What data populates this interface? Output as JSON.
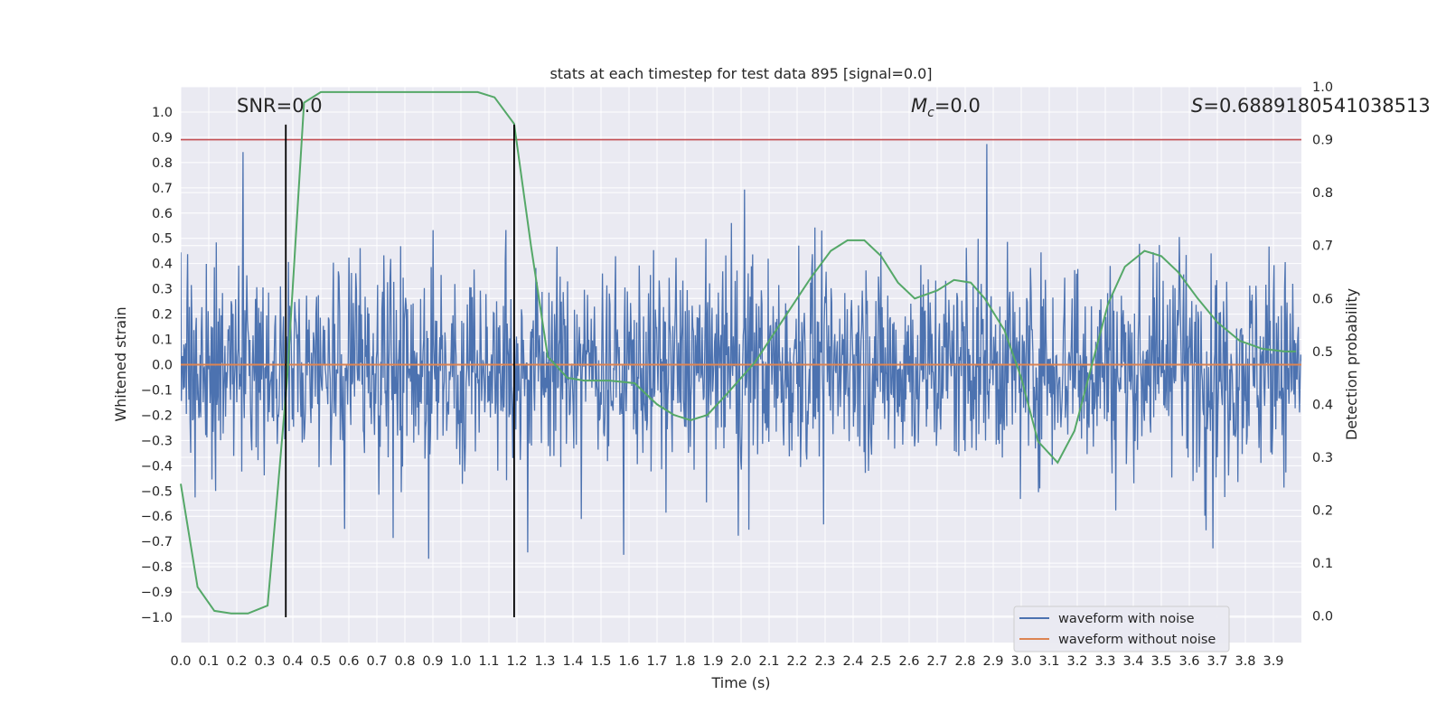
{
  "chart_data": {
    "type": "line",
    "title": "stats at each timestep for test data 895 [signal=0.0]",
    "xlabel": "Time (s)",
    "ylabel": "Whitened strain",
    "y2label": "Detection probability",
    "xlim": [
      0.0,
      4.0
    ],
    "ylim": [
      -1.1,
      1.1
    ],
    "y2lim": [
      -0.05,
      1.0
    ],
    "xticks": [
      "0.0",
      "0.1",
      "0.2",
      "0.3",
      "0.4",
      "0.5",
      "0.6",
      "0.7",
      "0.8",
      "0.9",
      "1.0",
      "1.1",
      "1.2",
      "1.3",
      "1.4",
      "1.5",
      "1.6",
      "1.7",
      "1.8",
      "1.9",
      "2.0",
      "2.1",
      "2.2",
      "2.3",
      "2.4",
      "2.5",
      "2.6",
      "2.7",
      "2.8",
      "2.9",
      "3.0",
      "3.1",
      "3.2",
      "3.3",
      "3.4",
      "3.5",
      "3.6",
      "3.7",
      "3.8",
      "3.9"
    ],
    "yticks": [
      "−1.0",
      "−0.9",
      "−0.8",
      "−0.7",
      "−0.6",
      "−0.5",
      "−0.4",
      "−0.3",
      "−0.2",
      "−0.1",
      "0.0",
      "0.1",
      "0.2",
      "0.3",
      "0.4",
      "0.5",
      "0.6",
      "0.7",
      "0.8",
      "0.9",
      "1.0"
    ],
    "y2ticks": [
      "0.0",
      "0.1",
      "0.2",
      "0.3",
      "0.4",
      "0.5",
      "0.6",
      "0.7",
      "0.8",
      "0.9",
      "1.0"
    ],
    "annotations": {
      "snr": "SNR=0.0",
      "mc_symbol": "M",
      "mc_sub": "c",
      "mc_value": "=0.0",
      "s_symbol": "S",
      "s_value": "=0.6889180541038513"
    },
    "vlines_x": [
      0.375,
      1.19
    ],
    "hline_threshold_y2": 0.9,
    "series": [
      {
        "name": "waveform with noise",
        "color": "#4c72b0",
        "style": "dense noise, amplitude roughly within [-1.0, 0.95]"
      },
      {
        "name": "waveform without noise",
        "color": "#dd8452",
        "values_constant": 0.0
      },
      {
        "name": "Detection probability",
        "color": "#55a868",
        "axis": "right",
        "x": [
          0.0,
          0.06,
          0.12,
          0.18,
          0.24,
          0.31,
          0.34,
          0.38,
          0.44,
          0.5,
          0.6,
          0.75,
          0.9,
          1.0,
          1.06,
          1.12,
          1.19,
          1.25,
          1.31,
          1.38,
          1.44,
          1.53,
          1.62,
          1.7,
          1.76,
          1.82,
          1.88,
          1.95,
          2.05,
          2.15,
          2.25,
          2.32,
          2.38,
          2.44,
          2.5,
          2.56,
          2.62,
          2.7,
          2.76,
          2.82,
          2.87,
          2.94,
          3.0,
          3.06,
          3.13,
          3.19,
          3.25,
          3.31,
          3.37,
          3.44,
          3.5,
          3.56,
          3.63,
          3.7,
          3.78,
          3.86,
          3.94,
          3.98
        ],
        "values": [
          0.25,
          0.055,
          0.01,
          0.005,
          0.005,
          0.02,
          0.2,
          0.45,
          0.97,
          0.99,
          0.99,
          0.99,
          0.99,
          0.99,
          0.99,
          0.98,
          0.93,
          0.7,
          0.49,
          0.45,
          0.445,
          0.445,
          0.44,
          0.4,
          0.38,
          0.37,
          0.38,
          0.42,
          0.48,
          0.56,
          0.64,
          0.69,
          0.71,
          0.71,
          0.68,
          0.63,
          0.6,
          0.615,
          0.635,
          0.63,
          0.6,
          0.54,
          0.45,
          0.33,
          0.29,
          0.35,
          0.47,
          0.59,
          0.66,
          0.69,
          0.68,
          0.65,
          0.6,
          0.555,
          0.52,
          0.505,
          0.5,
          0.5
        ]
      }
    ],
    "legend": {
      "position": "bottom-right",
      "entries": [
        "waveform with noise",
        "waveform without noise"
      ]
    },
    "grid": true
  }
}
